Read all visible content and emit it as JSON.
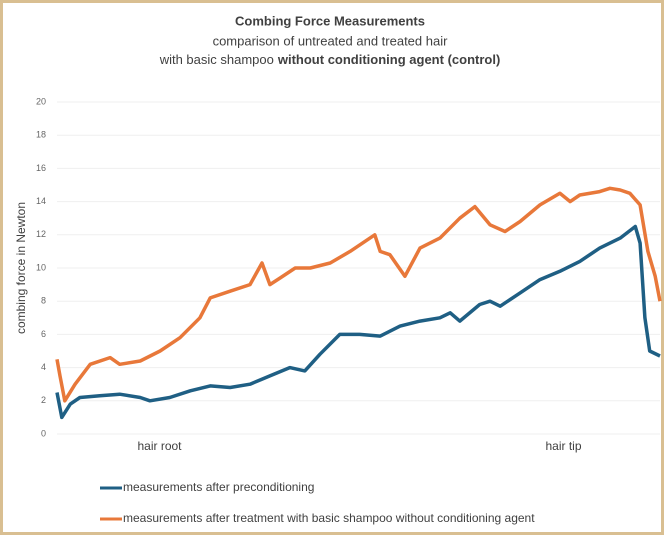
{
  "chart_data": {
    "type": "line",
    "title": "Combing Force Measurements",
    "subtitle": "comparison of untreated and treated hair",
    "subtitle2": "with basic shampoo",
    "subtitle2_bold": "without conditioning agent (control)",
    "y_label": "combing force in Newton",
    "xlim": [
      0,
      100
    ],
    "xticks": [
      {
        "value": 17,
        "label": "hair root"
      },
      {
        "value": 84,
        "label": "hair tip"
      }
    ],
    "ylim": [
      0,
      20
    ],
    "yticks": [
      0,
      2,
      4,
      6,
      8,
      10,
      12,
      14,
      16,
      18,
      20
    ],
    "grid": true,
    "legend": "bottom",
    "series": [
      {
        "name": "measurements after preconditioning",
        "color": "#1f5f84",
        "x": [
          0,
          0.8,
          2.2,
          3.8,
          7.1,
          10.4,
          13.8,
          15.4,
          18.7,
          22.1,
          25.4,
          28.7,
          32.0,
          35.3,
          38.6,
          41.1,
          43.6,
          46.9,
          50.2,
          53.6,
          56.9,
          60.2,
          63.5,
          65.2,
          66.8,
          70.1,
          71.8,
          73.5,
          76.8,
          80.1,
          83.4,
          86.7,
          90.0,
          93.4,
          95.9,
          96.7,
          97.5,
          98.3,
          100
        ],
        "values": [
          2.5,
          1.0,
          1.8,
          2.2,
          2.3,
          2.4,
          2.2,
          2.0,
          2.2,
          2.6,
          2.9,
          2.8,
          3.0,
          3.5,
          4.0,
          3.8,
          4.8,
          6.0,
          6.0,
          5.9,
          6.5,
          6.8,
          7.0,
          7.3,
          6.8,
          7.8,
          8.0,
          7.7,
          8.5,
          9.3,
          9.8,
          10.4,
          11.2,
          11.8,
          12.5,
          11.5,
          7.0,
          5.0,
          4.7
        ]
      },
      {
        "name": "measurements after treatment with basic shampoo without conditioning agent",
        "color": "#e8783a",
        "x": [
          0,
          0.5,
          1.3,
          3.0,
          5.5,
          8.8,
          10.4,
          13.8,
          17.1,
          20.4,
          23.7,
          25.4,
          28.7,
          32.0,
          34.0,
          35.3,
          37.0,
          39.5,
          42.0,
          45.3,
          48.6,
          52.7,
          53.6,
          55.2,
          57.7,
          60.2,
          63.5,
          66.8,
          69.3,
          71.8,
          74.3,
          76.8,
          80.1,
          83.4,
          85.1,
          86.7,
          90.0,
          91.7,
          93.4,
          95.0,
          96.7,
          98.0,
          99.2,
          100
        ],
        "values": [
          4.5,
          3.5,
          2.0,
          3.0,
          4.2,
          4.6,
          4.2,
          4.4,
          5.0,
          5.8,
          7.0,
          8.2,
          8.6,
          9.0,
          10.3,
          9.0,
          9.4,
          10.0,
          10.0,
          10.3,
          11.0,
          12.0,
          11.0,
          10.8,
          9.5,
          11.2,
          11.8,
          13.0,
          13.7,
          12.6,
          12.2,
          12.8,
          13.8,
          14.5,
          14.0,
          14.4,
          14.6,
          14.8,
          14.7,
          14.5,
          13.8,
          11.0,
          9.5,
          8.0
        ]
      }
    ]
  }
}
